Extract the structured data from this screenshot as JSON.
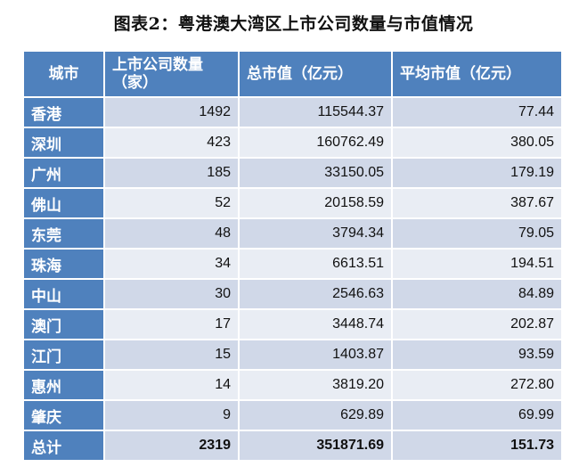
{
  "title": "图表2：粤港澳大湾区上市公司数量与市值情况",
  "table": {
    "headers": {
      "city": "城市",
      "count_line1": "上市公司数量",
      "count_line2": "（家）",
      "total_value": "总市值（亿元）",
      "avg_value": "平均市值（亿元）"
    },
    "rows": [
      {
        "city": "香港",
        "count": "1492",
        "total": "115544.37",
        "avg": "77.44"
      },
      {
        "city": "深圳",
        "count": "423",
        "total": "160762.49",
        "avg": "380.05"
      },
      {
        "city": "广州",
        "count": "185",
        "total": "33150.05",
        "avg": "179.19"
      },
      {
        "city": "佛山",
        "count": "52",
        "total": "20158.59",
        "avg": "387.67"
      },
      {
        "city": "东莞",
        "count": "48",
        "total": "3794.34",
        "avg": "79.05"
      },
      {
        "city": "珠海",
        "count": "34",
        "total": "6613.51",
        "avg": "194.51"
      },
      {
        "city": "中山",
        "count": "30",
        "total": "2546.63",
        "avg": "84.89"
      },
      {
        "city": "澳门",
        "count": "17",
        "total": "3448.74",
        "avg": "202.87"
      },
      {
        "city": "江门",
        "count": "15",
        "total": "1403.87",
        "avg": "93.59"
      },
      {
        "city": "惠州",
        "count": "14",
        "total": "3819.20",
        "avg": "272.80"
      },
      {
        "city": "肇庆",
        "count": "9",
        "total": "629.89",
        "avg": "69.99"
      }
    ],
    "total_row": {
      "city": "总计",
      "count": "2319",
      "total": "351871.69",
      "avg": "151.73"
    }
  },
  "colors": {
    "header_blue": "#4f81bd",
    "row_dark": "#d0d8e8",
    "row_light": "#e9edf4"
  }
}
